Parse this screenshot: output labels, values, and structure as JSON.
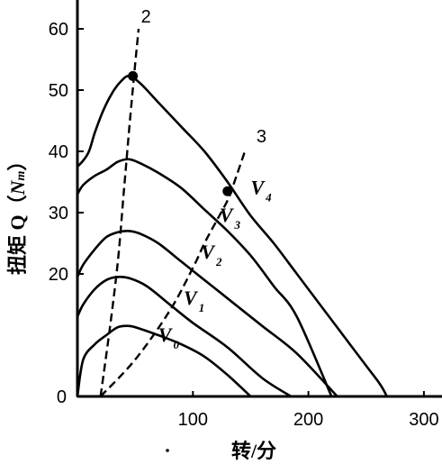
{
  "chart_data": {
    "type": "line",
    "xlabel": "转/分",
    "ylabel_prefix": "扭矩 Q（",
    "ylabel_unit": "N",
    "ylabel_unit_sub": "m",
    "ylabel_suffix": "）",
    "x_ticks": [
      {
        "value": 0,
        "label": "0"
      },
      {
        "value": 100,
        "label": "100"
      },
      {
        "value": 200,
        "label": "200"
      },
      {
        "value": 300,
        "label": "300"
      }
    ],
    "y_ticks": [
      {
        "value": 20,
        "label": "20"
      },
      {
        "value": 30,
        "label": "30"
      },
      {
        "value": 40,
        "label": "40"
      },
      {
        "value": 50,
        "label": "50"
      },
      {
        "value": 60,
        "label": "60"
      }
    ],
    "xlim": [
      0,
      305
    ],
    "ylim": [
      0,
      68
    ],
    "series": [
      {
        "name": "V",
        "sub": "0",
        "x": [
          0,
          5,
          15,
          25,
          35,
          45,
          55,
          70,
          90,
          110,
          130,
          150
        ],
        "y": [
          0,
          6,
          8.5,
          10,
          11.3,
          11.5,
          11,
          10,
          8.5,
          6.5,
          3.5,
          0
        ]
      },
      {
        "name": "V",
        "sub": "1",
        "x": [
          0,
          5,
          15,
          25,
          35,
          45,
          60,
          80,
          100,
          130,
          160,
          185
        ],
        "y": [
          13,
          15,
          17.5,
          19,
          19.5,
          19.3,
          18,
          15,
          12,
          8,
          3,
          0
        ]
      },
      {
        "name": "V",
        "sub": "2",
        "x": [
          0,
          5,
          15,
          25,
          35,
          45,
          55,
          70,
          90,
          110,
          130,
          160,
          190,
          225
        ],
        "y": [
          19.5,
          21.5,
          24,
          26,
          26.8,
          27,
          26.5,
          25,
          22,
          19,
          16,
          11.5,
          7,
          0
        ]
      },
      {
        "name": "V",
        "sub": "3",
        "x": [
          0,
          5,
          15,
          25,
          35,
          45,
          55,
          70,
          90,
          110,
          130,
          150,
          170,
          190,
          220
        ],
        "y": [
          33,
          34.5,
          36,
          37,
          38.3,
          38.7,
          38,
          36.5,
          34,
          30.5,
          27,
          23,
          18,
          13,
          0
        ]
      },
      {
        "name": "V",
        "sub": "4",
        "x": [
          0,
          5,
          10,
          15,
          22,
          30,
          38,
          45,
          55,
          70,
          90,
          110,
          130,
          150,
          170,
          190,
          210,
          230,
          250,
          262,
          268
        ],
        "y": [
          37.5,
          38.5,
          40,
          43,
          46.5,
          49.5,
          51.5,
          52.3,
          51,
          48,
          44,
          40,
          35,
          29.5,
          25,
          20,
          15,
          10,
          5,
          2,
          0
        ]
      }
    ],
    "dashed_series": [
      {
        "label": "2",
        "x": [
          20,
          28,
          35,
          40,
          45,
          49,
          53
        ],
        "y": [
          0,
          11,
          22,
          33,
          44,
          52.3,
          60
        ]
      },
      {
        "label": "3",
        "x": [
          20,
          50,
          80,
          100,
          110,
          120,
          130,
          135,
          145
        ],
        "y": [
          0,
          6,
          14,
          21,
          25,
          28.5,
          32,
          34.5,
          40
        ]
      }
    ],
    "markers": [
      {
        "x": 48,
        "y": 52.3
      },
      {
        "x": 130,
        "y": 33.5
      }
    ],
    "curve_label_positions": [
      {
        "sub": "0",
        "x": 70,
        "y": 9
      },
      {
        "sub": "1",
        "x": 92,
        "y": 15
      },
      {
        "sub": "2",
        "x": 107,
        "y": 22.5
      },
      {
        "sub": "3",
        "x": 123,
        "y": 28.5
      },
      {
        "sub": "4",
        "x": 150,
        "y": 33
      }
    ],
    "dashed_label_positions": [
      {
        "label": "2",
        "x": 55,
        "y": 61
      },
      {
        "label": "3",
        "x": 155,
        "y": 41.5
      }
    ],
    "grid": false
  }
}
